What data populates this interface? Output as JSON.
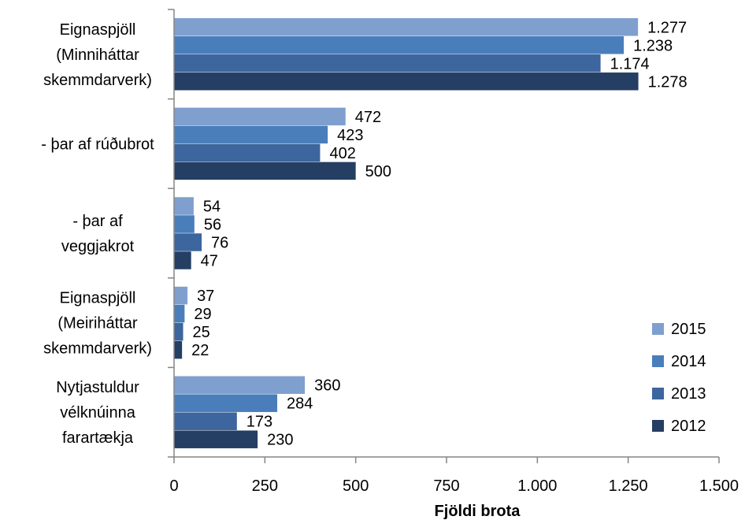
{
  "chart_data": {
    "type": "bar",
    "orientation": "horizontal",
    "categories": [
      [
        "Eignaspjöll",
        "(Minniháttar",
        "skemmdarverk)"
      ],
      [
        "- þar af rúðubrot"
      ],
      [
        "- þar af",
        "veggjakrot"
      ],
      [
        "Eignaspjöll",
        "(Meiriháttar",
        "skemmdarverk)"
      ],
      [
        "Nytjastuldur",
        "vélknúinna",
        "farartækja"
      ]
    ],
    "series": [
      {
        "name": "2015",
        "color": "#7f9fcf",
        "values": [
          1277,
          472,
          54,
          37,
          360
        ],
        "labels": [
          "1.277",
          "472",
          "54",
          "37",
          "360"
        ]
      },
      {
        "name": "2014",
        "color": "#4a7ebb",
        "values": [
          1238,
          423,
          56,
          29,
          284
        ],
        "labels": [
          "1.238",
          "423",
          "56",
          "29",
          "284"
        ]
      },
      {
        "name": "2013",
        "color": "#3d659e",
        "values": [
          1174,
          402,
          76,
          25,
          173
        ],
        "labels": [
          "1.174",
          "402",
          "76",
          "25",
          "173"
        ]
      },
      {
        "name": "2012",
        "color": "#243f63",
        "values": [
          1278,
          500,
          47,
          22,
          230
        ],
        "labels": [
          "1.278",
          "500",
          "47",
          "22",
          "230"
        ]
      }
    ],
    "xlim": [
      0,
      1500
    ],
    "xticks": [
      0,
      250,
      500,
      750,
      1000,
      1250,
      1500
    ],
    "xtick_labels": [
      "0",
      "250",
      "500",
      "750",
      "1.000",
      "1.250",
      "1.500"
    ],
    "xlabel": "Fjöldi brota",
    "grid": false,
    "legend_position": "bottom-right",
    "legend_order": [
      "2015",
      "2014",
      "2013",
      "2012"
    ]
  }
}
